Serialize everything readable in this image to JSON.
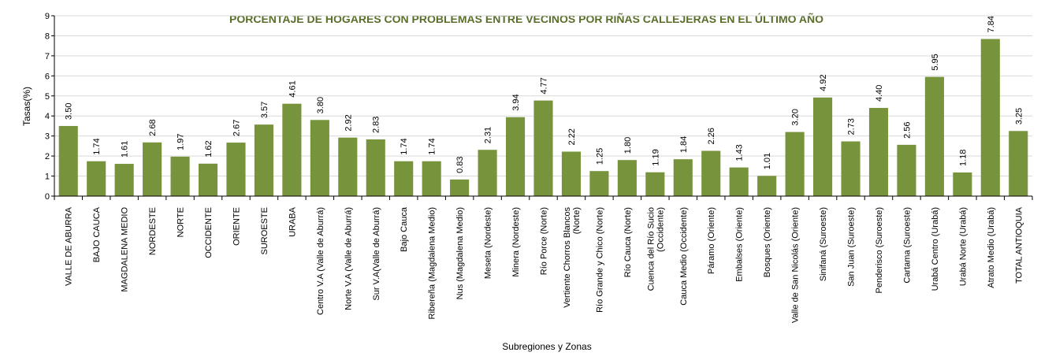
{
  "chart_data": {
    "type": "bar",
    "title": "PORCENTAJE DE HOGARES CON PROBLEMAS ENTRE VECINOS POR RIÑAS CALLEJERAS EN EL ÚLTIMO AÑO",
    "xlabel": "Subregiones y Zonas",
    "ylabel": "Tasas(%)",
    "ylim": [
      0,
      9
    ],
    "yticks": [
      0,
      1,
      2,
      3,
      4,
      5,
      6,
      7,
      8,
      9
    ],
    "grid": true,
    "colors": {
      "bar": "#77933c",
      "title": "#5a6e2a",
      "grid": "#d9d9d9"
    },
    "categories": [
      [
        "VALLE DE ABURRA"
      ],
      [
        "BAJO CAUCA"
      ],
      [
        "MAGDALENA MEDIO"
      ],
      [
        "NORDESTE"
      ],
      [
        "NORTE"
      ],
      [
        "OCCIDENTE"
      ],
      [
        "ORIENTE"
      ],
      [
        "SUROESTE"
      ],
      [
        "URABA"
      ],
      [
        "Centro V.A (Valle de Aburrá)"
      ],
      [
        "Norte V.A (Valle de Aburrá)"
      ],
      [
        "Sur V.A(Valle de Aburrá)"
      ],
      [
        "Bajo Cauca"
      ],
      [
        "Ribereña  (Magdalena Medio)"
      ],
      [
        "Nus  (Magdalena Medio)"
      ],
      [
        "Meseta  (Nordeste)"
      ],
      [
        "Minera  (Nordeste)"
      ],
      [
        "Río Porce   (Norte)"
      ],
      [
        "Vertiente Chorros Blancos",
        "(Norte)"
      ],
      [
        "Río Grande y Chico  (Norte)"
      ],
      [
        "Río Cauca  (Norte)"
      ],
      [
        "Cuenca del Río Sucio",
        "(Occidente)"
      ],
      [
        "Cauca Medio  (Occidente)"
      ],
      [
        "Páramo  (Oriente)"
      ],
      [
        "Embalses  (Oriente)"
      ],
      [
        "Bosques  (Oriente)"
      ],
      [
        "Valle de San Nicolás  (Oriente)"
      ],
      [
        "Sinifaná  (Suroeste)"
      ],
      [
        "San Juan  (Suroeste)"
      ],
      [
        "Penderisco  (Suroeste)"
      ],
      [
        "Cartama  (Suroeste)"
      ],
      [
        "Urabá Centro   (Urabá)"
      ],
      [
        "Urabá Norte   (Urabá)"
      ],
      [
        "Atrato Medio  (Urabá)"
      ],
      [
        "TOTAL ANTIOQUIA"
      ]
    ],
    "values": [
      3.5,
      1.74,
      1.61,
      2.68,
      1.97,
      1.62,
      2.67,
      3.57,
      4.61,
      3.8,
      2.92,
      2.83,
      1.74,
      1.74,
      0.83,
      2.31,
      3.94,
      4.77,
      2.22,
      1.25,
      1.8,
      1.19,
      1.84,
      2.26,
      1.43,
      1.01,
      3.2,
      4.92,
      2.73,
      4.4,
      2.56,
      5.95,
      1.18,
      7.84,
      3.25
    ],
    "value_labels": [
      "3.50",
      "1.74",
      "1.61",
      "2.68",
      "1.97",
      "1.62",
      "2.67",
      "3.57",
      "4.61",
      "3.80",
      "2.92",
      "2.83",
      "1.74",
      "1.74",
      "0.83",
      "2.31",
      "3.94",
      "4.77",
      "2.22",
      "1.25",
      "1.80",
      "1.19",
      "1.84",
      "2.26",
      "1.43",
      "1.01",
      "3.20",
      "4.92",
      "2.73",
      "4.40",
      "2.56",
      "5.95",
      "1.18",
      "7.84",
      "3.25"
    ]
  }
}
